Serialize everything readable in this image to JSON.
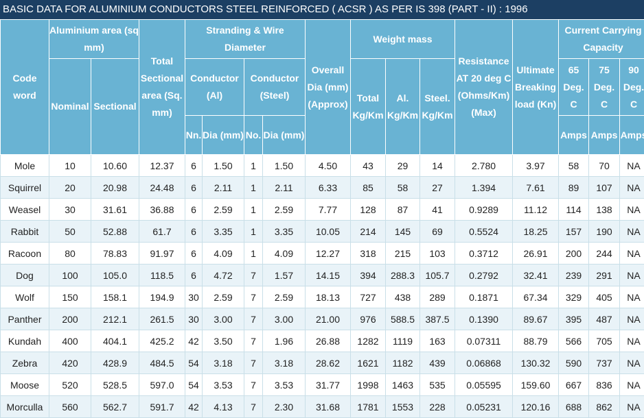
{
  "title": "BASIC DATA FOR ALUMINIUM CONDUCTORS STEEL REINFORCED ( ACSR ) AS PER IS 398 (PART - II) : 1996",
  "headers": {
    "code_word": "Code word",
    "aluminium_area": "Aluminium area (sq mm)",
    "nominal": "Nominal",
    "sectional": "Sectional",
    "total_sectional_area": "Total Sectional area (Sq. mm)",
    "stranding": "Stranding & Wire Diameter",
    "conductor_al": "Conductor (Al)",
    "conductor_steel": "Conductor (Steel)",
    "al_nn": "Nn.",
    "al_dia": "Dia (mm)",
    "steel_no": "No.",
    "steel_dia": "Dia (mm)",
    "overall_dia": "Overall Dia (mm) (Approx)",
    "weight_mass": "Weight mass",
    "total_kgkm": "Total Kg/Km",
    "al_kgkm": "Al. Kg/Km",
    "steel_kgkm": "Steel. Kg/Km",
    "resistance": "Resistance AT 20 deg C (Ohms/Km) (Max)",
    "ultimate_breaking": "Ultimate Breaking load (Kn)",
    "current_capacity": "Current Carrying Capacity",
    "deg65": "65 Deg. C",
    "deg75": "75 Deg. C",
    "deg90": "90 Deg. C",
    "amps": "Amps"
  },
  "rows": [
    [
      "Mole",
      "10",
      "10.60",
      "12.37",
      "6",
      "1.50",
      "1",
      "1.50",
      "4.50",
      "43",
      "29",
      "14",
      "2.780",
      "3.97",
      "58",
      "70",
      "NA"
    ],
    [
      "Squirrel",
      "20",
      "20.98",
      "24.48",
      "6",
      "2.11",
      "1",
      "2.11",
      "6.33",
      "85",
      "58",
      "27",
      "1.394",
      "7.61",
      "89",
      "107",
      "NA"
    ],
    [
      "Weasel",
      "30",
      "31.61",
      "36.88",
      "6",
      "2.59",
      "1",
      "2.59",
      "7.77",
      "128",
      "87",
      "41",
      "0.9289",
      "11.12",
      "114",
      "138",
      "NA"
    ],
    [
      "Rabbit",
      "50",
      "52.88",
      "61.7",
      "6",
      "3.35",
      "1",
      "3.35",
      "10.05",
      "214",
      "145",
      "69",
      "0.5524",
      "18.25",
      "157",
      "190",
      "NA"
    ],
    [
      "Racoon",
      "80",
      "78.83",
      "91.97",
      "6",
      "4.09",
      "1",
      "4.09",
      "12.27",
      "318",
      "215",
      "103",
      "0.3712",
      "26.91",
      "200",
      "244",
      "NA"
    ],
    [
      "Dog",
      "100",
      "105.0",
      "118.5",
      "6",
      "4.72",
      "7",
      "1.57",
      "14.15",
      "394",
      "288.3",
      "105.7",
      "0.2792",
      "32.41",
      "239",
      "291",
      "NA"
    ],
    [
      "Wolf",
      "150",
      "158.1",
      "194.9",
      "30",
      "2.59",
      "7",
      "2.59",
      "18.13",
      "727",
      "438",
      "289",
      "0.1871",
      "67.34",
      "329",
      "405",
      "NA"
    ],
    [
      "Panther",
      "200",
      "212.1",
      "261.5",
      "30",
      "3.00",
      "7",
      "3.00",
      "21.00",
      "976",
      "588.5",
      "387.5",
      "0.1390",
      "89.67",
      "395",
      "487",
      "NA"
    ],
    [
      "Kundah",
      "400",
      "404.1",
      "425.2",
      "42",
      "3.50",
      "7",
      "1.96",
      "26.88",
      "1282",
      "1119",
      "163",
      "0.07311",
      "88.79",
      "566",
      "705",
      "NA"
    ],
    [
      "Zebra",
      "420",
      "428.9",
      "484.5",
      "54",
      "3.18",
      "7",
      "3.18",
      "28.62",
      "1621",
      "1182",
      "439",
      "0.06868",
      "130.32",
      "590",
      "737",
      "NA"
    ],
    [
      "Moose",
      "520",
      "528.5",
      "597.0",
      "54",
      "3.53",
      "7",
      "3.53",
      "31.77",
      "1998",
      "1463",
      "535",
      "0.05595",
      "159.60",
      "667",
      "836",
      "NA"
    ],
    [
      "Morculla",
      "560",
      "562.7",
      "591.7",
      "42",
      "4.13",
      "7",
      "2.30",
      "31.68",
      "1781",
      "1553",
      "228",
      "0.05231",
      "120.16",
      "688",
      "862",
      "NA"
    ]
  ]
}
